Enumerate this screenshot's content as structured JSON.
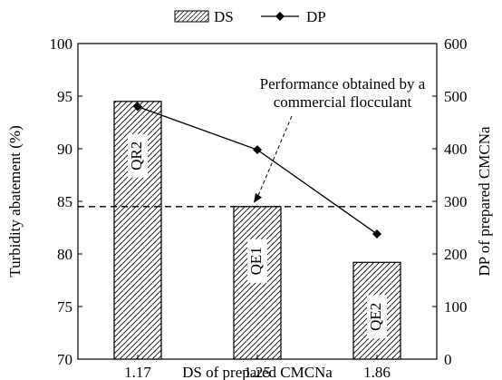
{
  "chart_data": {
    "type": "bar",
    "categories": [
      "1.17",
      "1.25",
      "1.86"
    ],
    "xlabel": "DS of prepared CMCNa",
    "ylabel": "Turbidity abatement (%)",
    "y2label": "DP of prepared CMCNa",
    "ylim": [
      70,
      100
    ],
    "y2lim": [
      0,
      600
    ],
    "yticks": [
      "70",
      "75",
      "80",
      "85",
      "90",
      "95",
      "100"
    ],
    "y2ticks": [
      "0",
      "100",
      "200",
      "300",
      "400",
      "500",
      "600"
    ],
    "grid": false,
    "legend_position": "top-center",
    "series": [
      {
        "name": "DS",
        "type": "bar",
        "axis": "left",
        "values": [
          94.5,
          84.5,
          79.2
        ],
        "bar_labels": [
          "QR2",
          "QE1",
          "QE2"
        ],
        "pattern": "hatched"
      },
      {
        "name": "DP",
        "type": "line",
        "axis": "right",
        "marker": "diamond",
        "values": [
          480,
          398,
          238
        ]
      }
    ],
    "reference_line": {
      "value": 84.5,
      "axis": "left",
      "style": "dashed",
      "label_lines": [
        "Performance obtained by a",
        "commercial flocculant"
      ]
    }
  }
}
